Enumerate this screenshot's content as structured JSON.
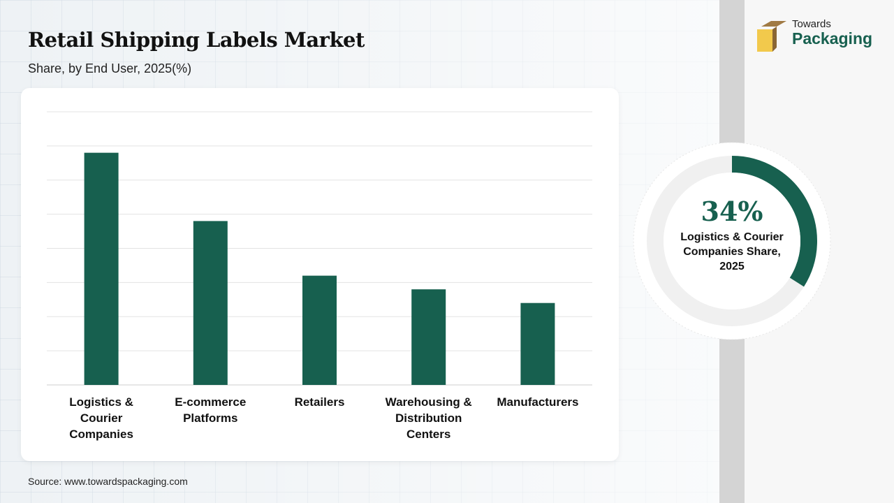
{
  "header": {
    "title": "Retail Shipping Labels Market",
    "subtitle": "Share, by End User, 2025(%)"
  },
  "colors": {
    "bar": "#17604f",
    "ring_track": "#f0f0f0",
    "accent_text": "#17604f",
    "logo_box_gold": "#f2c94c",
    "logo_box_brown": "#a07a44"
  },
  "chart_data": {
    "type": "bar",
    "categories": [
      [
        "Logistics &",
        "Courier",
        "Companies"
      ],
      [
        "E-commerce",
        "Platforms"
      ],
      [
        "Retailers"
      ],
      [
        "Warehousing &",
        "Distribution",
        "Centers"
      ],
      [
        "Manufacturers"
      ]
    ],
    "values": [
      34,
      24,
      16,
      14,
      12
    ],
    "ylim": [
      0,
      40
    ],
    "grid": true,
    "xlabel": "",
    "ylabel": ""
  },
  "highlight": {
    "value": "34%",
    "share": 0.34,
    "label": "Logistics & Courier Companies Share, 2025"
  },
  "source": "Source: www.towardspackaging.com",
  "logo": {
    "line1": "Towards",
    "line2": "Packaging",
    "icon": "box-icon"
  }
}
